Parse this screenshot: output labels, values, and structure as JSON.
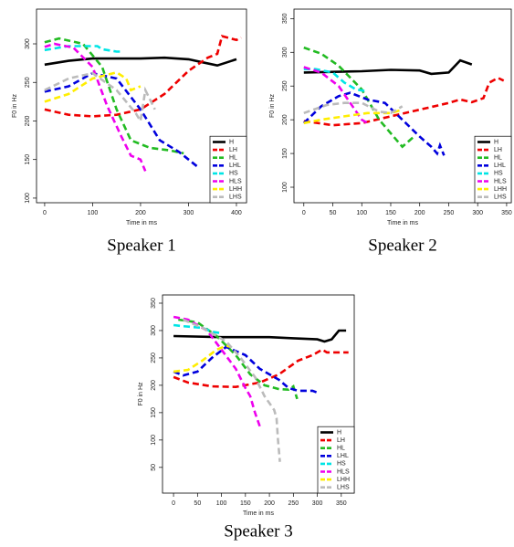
{
  "chart_data": [
    {
      "type": "line",
      "title": "Speaker 1",
      "xlabel": "Time in ms",
      "ylabel": "F0 in Hz",
      "xlim": [
        -17,
        421
      ],
      "ylim": [
        94,
        345
      ],
      "xticks": [
        0,
        100,
        200,
        300,
        400
      ],
      "yticks": [
        100,
        150,
        200,
        250,
        300
      ],
      "legend": "bottom-right",
      "series": [
        {
          "name": "H",
          "color": "#000000",
          "linestyle": "solid",
          "x": [
            0,
            50,
            100,
            150,
            200,
            250,
            300,
            330,
            360,
            380,
            400
          ],
          "values": [
            273,
            278,
            281,
            281,
            281,
            282,
            280,
            276,
            272,
            276,
            280
          ]
        },
        {
          "name": "LH",
          "color": "#ee0000",
          "linestyle": "dashed",
          "x": [
            0,
            50,
            100,
            150,
            200,
            250,
            300,
            340,
            360,
            370,
            400,
            410
          ],
          "values": [
            215,
            208,
            206,
            208,
            215,
            235,
            265,
            282,
            287,
            310,
            305,
            308
          ]
        },
        {
          "name": "HL",
          "color": "#22bb22",
          "linestyle": "dashed",
          "x": [
            0,
            30,
            80,
            120,
            150,
            180,
            220,
            260,
            290
          ],
          "values": [
            302,
            307,
            300,
            270,
            215,
            175,
            165,
            162,
            158
          ]
        },
        {
          "name": "LHL",
          "color": "#0000dd",
          "linestyle": "dashed",
          "x": [
            0,
            50,
            100,
            150,
            200,
            240,
            280,
            300,
            320
          ],
          "values": [
            238,
            245,
            262,
            255,
            215,
            175,
            160,
            150,
            140
          ]
        },
        {
          "name": "HS",
          "color": "#00e5e5",
          "linestyle": "dashed",
          "x": [
            0,
            50,
            110,
            120,
            150,
            160
          ],
          "values": [
            292,
            297,
            297,
            293,
            290,
            290
          ]
        },
        {
          "name": "HLS",
          "color": "#ee00ee",
          "linestyle": "dashed",
          "x": [
            0,
            20,
            60,
            100,
            130,
            160,
            180,
            200,
            210
          ],
          "values": [
            296,
            300,
            295,
            270,
            220,
            180,
            155,
            150,
            135
          ]
        },
        {
          "name": "LHH",
          "color": "#ffee00",
          "linestyle": "dashed",
          "x": [
            0,
            50,
            100,
            150,
            170,
            180,
            200
          ],
          "values": [
            225,
            235,
            255,
            263,
            255,
            240,
            245
          ]
        },
        {
          "name": "LHS",
          "color": "#bbbbbb",
          "linestyle": "dashed",
          "x": [
            0,
            50,
            100,
            150,
            190,
            200,
            210,
            230
          ],
          "values": [
            240,
            255,
            262,
            240,
            210,
            200,
            240,
            215
          ]
        }
      ]
    },
    {
      "type": "line",
      "title": "Speaker 2",
      "xlabel": "Time in ms",
      "ylabel": "F0 in Hz",
      "xlim": [
        -17,
        358
      ],
      "ylim": [
        77,
        364
      ],
      "xticks": [
        0,
        50,
        100,
        150,
        200,
        250,
        300,
        350
      ],
      "yticks": [
        100,
        150,
        200,
        250,
        300,
        350
      ],
      "legend": "bottom-right",
      "series": [
        {
          "name": "H",
          "color": "#000000",
          "linestyle": "solid",
          "x": [
            0,
            100,
            150,
            200,
            220,
            250,
            270,
            290
          ],
          "values": [
            270,
            272,
            274,
            273,
            268,
            270,
            288,
            282
          ]
        },
        {
          "name": "LH",
          "color": "#ee0000",
          "linestyle": "dashed",
          "x": [
            0,
            50,
            100,
            150,
            200,
            250,
            270,
            290,
            310,
            320,
            335,
            345
          ],
          "values": [
            198,
            192,
            195,
            205,
            215,
            225,
            230,
            226,
            232,
            255,
            262,
            258
          ]
        },
        {
          "name": "HL",
          "color": "#22bb22",
          "linestyle": "dashed",
          "x": [
            0,
            30,
            60,
            100,
            130,
            160,
            170,
            190
          ],
          "values": [
            307,
            298,
            280,
            245,
            200,
            170,
            160,
            175
          ]
        },
        {
          "name": "LHL",
          "color": "#0000dd",
          "linestyle": "dashed",
          "x": [
            0,
            30,
            60,
            80,
            110,
            140,
            170,
            200,
            220,
            230,
            235,
            242
          ],
          "values": [
            195,
            220,
            235,
            240,
            230,
            225,
            200,
            175,
            160,
            150,
            162,
            147
          ]
        },
        {
          "name": "HS",
          "color": "#00e5e5",
          "linestyle": "dashed",
          "x": [
            0,
            20,
            50,
            70,
            90,
            110
          ],
          "values": [
            275,
            275,
            270,
            255,
            245,
            242
          ]
        },
        {
          "name": "HLS",
          "color": "#ee00ee",
          "linestyle": "dashed",
          "x": [
            0,
            30,
            60,
            80,
            100,
            110
          ],
          "values": [
            278,
            270,
            250,
            225,
            200,
            195
          ]
        },
        {
          "name": "LHH",
          "color": "#ffee00",
          "linestyle": "dashed",
          "x": [
            0,
            30,
            70,
            110,
            150,
            170
          ],
          "values": [
            195,
            200,
            205,
            210,
            210,
            215
          ]
        },
        {
          "name": "LHS",
          "color": "#bbbbbb",
          "linestyle": "dashed",
          "x": [
            0,
            40,
            70,
            100,
            130,
            150,
            170
          ],
          "values": [
            210,
            222,
            225,
            225,
            212,
            210,
            220
          ]
        }
      ]
    },
    {
      "type": "line",
      "title": "Speaker 3",
      "xlabel": "Time in ms",
      "ylabel": "F0 in Hz",
      "xlim": [
        -23,
        377
      ],
      "ylim": [
        3,
        365
      ],
      "xticks": [
        0,
        50,
        100,
        150,
        200,
        250,
        300,
        350
      ],
      "yticks": [
        50,
        100,
        150,
        200,
        250,
        300,
        350
      ],
      "legend": "bottom-right",
      "series": [
        {
          "name": "H",
          "color": "#000000",
          "linestyle": "solid",
          "x": [
            0,
            100,
            200,
            250,
            300,
            315,
            330,
            345,
            360
          ],
          "values": [
            290,
            288,
            288,
            286,
            284,
            280,
            284,
            300,
            300
          ]
        },
        {
          "name": "LH",
          "color": "#ee0000",
          "linestyle": "dashed",
          "x": [
            0,
            30,
            80,
            130,
            180,
            220,
            260,
            290,
            310,
            320,
            350,
            365
          ],
          "values": [
            215,
            205,
            198,
            197,
            205,
            220,
            245,
            255,
            265,
            260,
            260,
            260
          ]
        },
        {
          "name": "HL",
          "color": "#22bb22",
          "linestyle": "dashed",
          "x": [
            10,
            50,
            90,
            130,
            160,
            190,
            220,
            240,
            250,
            258
          ],
          "values": [
            320,
            315,
            290,
            255,
            220,
            200,
            193,
            192,
            198,
            175
          ]
        },
        {
          "name": "LHL",
          "color": "#0000dd",
          "linestyle": "dashed",
          "x": [
            0,
            20,
            50,
            80,
            110,
            150,
            180,
            220,
            240,
            260,
            290,
            305
          ],
          "values": [
            225,
            218,
            225,
            250,
            270,
            255,
            230,
            210,
            195,
            190,
            190,
            185
          ]
        },
        {
          "name": "HS",
          "color": "#00e5e5",
          "linestyle": "dashed",
          "x": [
            0,
            20,
            60,
            80,
            100
          ],
          "values": [
            310,
            308,
            305,
            298,
            295
          ]
        },
        {
          "name": "HLS",
          "color": "#ee00ee",
          "linestyle": "dashed",
          "x": [
            0,
            30,
            70,
            100,
            130,
            150,
            160,
            170,
            180
          ],
          "values": [
            325,
            320,
            300,
            265,
            230,
            195,
            180,
            150,
            125
          ]
        },
        {
          "name": "LHH",
          "color": "#ffee00",
          "linestyle": "dashed",
          "x": [
            0,
            30,
            60,
            90,
            110,
            120
          ],
          "values": [
            225,
            228,
            245,
            265,
            272,
            270
          ]
        },
        {
          "name": "LHS",
          "color": "#bbbbbb",
          "linestyle": "dashed",
          "x": [
            20,
            60,
            110,
            140,
            170,
            190,
            210,
            215,
            218,
            222
          ],
          "values": [
            320,
            305,
            280,
            250,
            215,
            180,
            155,
            140,
            100,
            60
          ]
        }
      ]
    }
  ]
}
